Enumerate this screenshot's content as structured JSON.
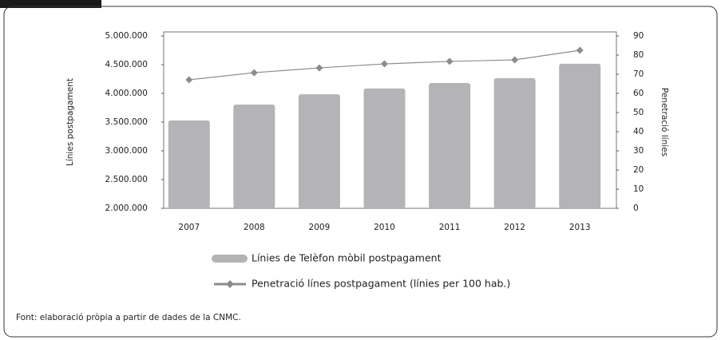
{
  "chart_data": {
    "type": "bar",
    "categories": [
      "2007",
      "2008",
      "2009",
      "2010",
      "2011",
      "2012",
      "2013"
    ],
    "series": [
      {
        "name": "Línies de Telèfon mòbil postpagament",
        "type": "bar",
        "color": "#b4b4b6",
        "values": [
          3530000,
          3805000,
          3985000,
          4085000,
          4180000,
          4265000,
          4515000
        ]
      },
      {
        "name": "Penetració línes postpagament (línies per 100 hab.)",
        "type": "line",
        "axis": "y2",
        "color": "#8c8c8c",
        "values": [
          67.1,
          70.8,
          73.3,
          75.4,
          76.7,
          77.5,
          82.5
        ]
      }
    ],
    "ylabel": "Línies postpagament",
    "y2label": "Penetració línies",
    "ylim": [
      2000000,
      5000000
    ],
    "yticks": [
      {
        "value": 2000000,
        "label": "2.000.000"
      },
      {
        "value": 2500000,
        "label": "2.500.000"
      },
      {
        "value": 3000000,
        "label": "3.000.000"
      },
      {
        "value": 3500000,
        "label": "3.500.000"
      },
      {
        "value": 4000000,
        "label": "4.000.000"
      },
      {
        "value": 4500000,
        "label": "4.500.000"
      },
      {
        "value": 5000000,
        "label": "5.000.000"
      }
    ],
    "y2lim": [
      0,
      90
    ],
    "y2ticks": [
      0,
      10,
      20,
      30,
      40,
      50,
      60,
      70,
      80,
      90
    ],
    "source": "Font: elaboració pròpia a partir de dades de la CNMC."
  }
}
